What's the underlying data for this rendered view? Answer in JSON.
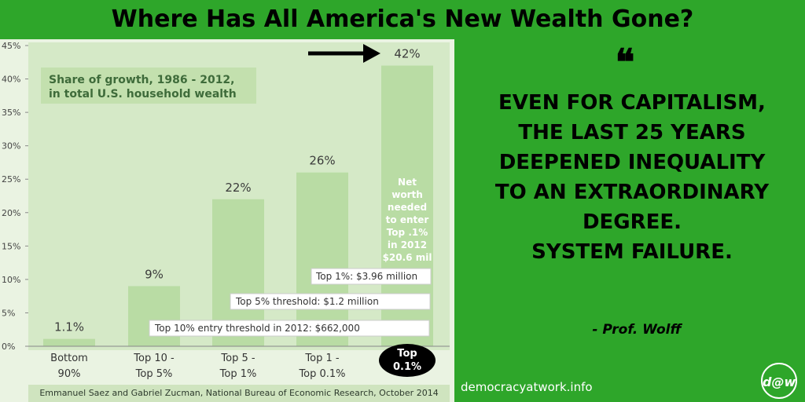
{
  "header": {
    "title": "Where Has All America's New Wealth Gone?"
  },
  "chart_data": {
    "type": "bar",
    "title": "Share of growth, 1986 - 2012,\nin total U.S. household wealth",
    "categories": [
      [
        "Bottom",
        "90%"
      ],
      [
        "Top 10 -",
        "Top 5%"
      ],
      [
        "Top 5 -",
        "Top 1%"
      ],
      [
        "Top 1 -",
        "Top 0.1%"
      ],
      [
        "Top",
        "0.1%"
      ]
    ],
    "values": [
      1.1,
      9,
      22,
      26,
      42
    ],
    "value_labels": [
      "1.1%",
      "9%",
      "22%",
      "26%",
      "42%"
    ],
    "ylim": [
      0,
      45
    ],
    "yticks": [
      "0%",
      "5%",
      "10%",
      "15%",
      "20%",
      "25%",
      "30%",
      "35%",
      "40%",
      "45%"
    ],
    "ytick_values": [
      0,
      5,
      10,
      15,
      20,
      25,
      30,
      35,
      40,
      45
    ],
    "annotations": {
      "threshold_top10": "Top 10% entry threshold in 2012: $662,000",
      "threshold_top5": "Top 5% threshold: $1.2 million",
      "threshold_top1": "Top 1%: $3.96 million",
      "top01_note": [
        "Net",
        "worth",
        "needed",
        "to enter",
        "Top .1%",
        "in 2012",
        "$20.6 mil"
      ]
    },
    "source": "Emmanuel Saez and Gabriel Zucman, National Bureau of Economic Research, October 2014",
    "colors": {
      "bar": "#b9dca4",
      "bar_dark": "#a8d192",
      "background": "#d5e9c7"
    }
  },
  "quote": {
    "mark": "❝",
    "lines": [
      "EVEN FOR CAPITALISM,",
      "THE LAST 25 YEARS",
      "DEEPENED INEQUALITY",
      "TO AN EXTRAORDINARY",
      "DEGREE.",
      "SYSTEM FAILURE."
    ],
    "attribution": "- Prof. Wolff"
  },
  "footer": {
    "site": "democracyatwork.info",
    "logo": "d@w"
  }
}
